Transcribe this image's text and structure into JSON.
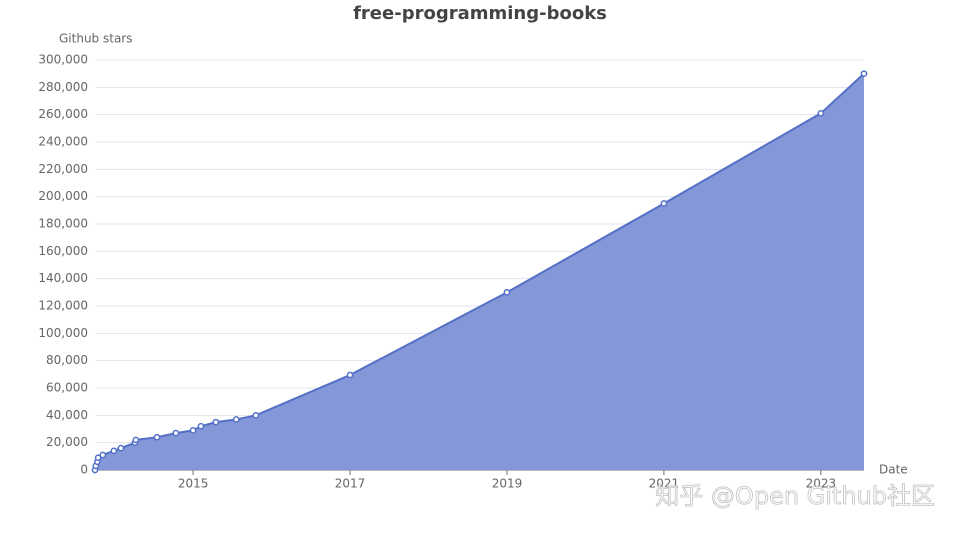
{
  "chart_data": {
    "type": "area",
    "title": "free-programming-books",
    "y_label": "Github stars",
    "x_label": "Date",
    "watermark": "知乎 @Open Github社区",
    "color": "#5470c6",
    "fill": "#8497d8",
    "grid": true,
    "xlim": [
      2013.75,
      2023.55
    ],
    "xticks": [
      2015,
      2017,
      2019,
      2021,
      2023
    ],
    "ylim": [
      0,
      300000
    ],
    "yticks": [
      0,
      {
        "value": 20000,
        "label": "20,000"
      },
      {
        "value": 40000,
        "label": "40,000"
      },
      {
        "value": 60000,
        "label": "60,000"
      },
      {
        "value": 80000,
        "label": "80,000"
      },
      {
        "value": 100000,
        "label": "100,000"
      },
      {
        "value": 120000,
        "label": "120,000"
      },
      {
        "value": 140000,
        "label": "140,000"
      },
      {
        "value": 160000,
        "label": "160,000"
      },
      {
        "value": 180000,
        "label": "180,000"
      },
      {
        "value": 200000,
        "label": "200,000"
      },
      {
        "value": 220000,
        "label": "220,000"
      },
      {
        "value": 240000,
        "label": "240,000"
      },
      {
        "value": 260000,
        "label": "260,000"
      },
      {
        "value": 280000,
        "label": "280,000"
      },
      {
        "value": 300000,
        "label": "300,000"
      }
    ],
    "x": [
      2013.75,
      2013.76,
      2013.78,
      2013.79,
      2013.85,
      2013.99,
      2014.08,
      2014.26,
      2014.27,
      2014.54,
      2014.78,
      2015.0,
      2015.1,
      2015.29,
      2015.55,
      2015.8,
      2017.0,
      2019.0,
      2021.0,
      2023.0,
      2023.55
    ],
    "values": [
      0,
      3000,
      6000,
      9000,
      11000,
      14000,
      16000,
      20000,
      22000,
      24000,
      27000,
      29000,
      32000,
      35000,
      37000,
      40000,
      69500,
      130000,
      195000,
      261000,
      290000
    ]
  }
}
